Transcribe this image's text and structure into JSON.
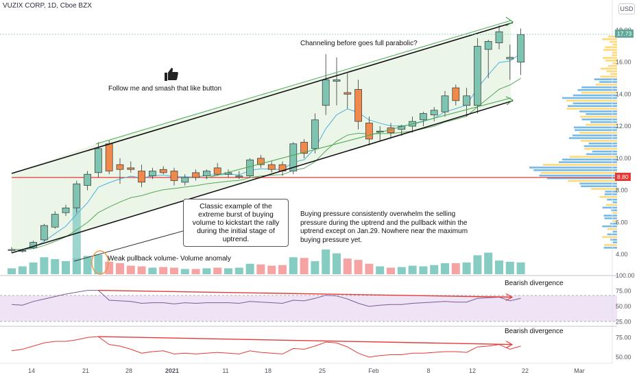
{
  "header": {
    "title": "VUZIX CORP, 1D, Cboe BZX",
    "currency": "USD"
  },
  "chart_data": {
    "type": "candlestick",
    "title": "VUZIX CORP, 1D, Cboe BZX",
    "x_tick_labels": [
      "14",
      "21",
      "28",
      "2021",
      "11",
      "18",
      "25",
      "Feb",
      "8",
      "12",
      "22",
      "Mar"
    ],
    "y_axis": {
      "ticks": [
        "4.00",
        "6.00",
        "8.00",
        "10.00",
        "12.00",
        "14.00",
        "16.00",
        "18.00"
      ],
      "range": [
        3.3,
        19.0
      ],
      "last_price": "17.73",
      "red_level": "8.80",
      "last_price_value": 17.73,
      "red_level_value": 8.8
    },
    "candles": [
      {
        "o": 4.3,
        "h": 4.45,
        "l": 4.1,
        "c": 4.3
      },
      {
        "o": 4.2,
        "h": 4.35,
        "l": 4.1,
        "c": 4.25
      },
      {
        "o": 4.4,
        "h": 4.85,
        "l": 4.35,
        "c": 4.75
      },
      {
        "o": 4.9,
        "h": 5.9,
        "l": 4.8,
        "c": 5.8
      },
      {
        "o": 5.7,
        "h": 6.7,
        "l": 5.6,
        "c": 6.5
      },
      {
        "o": 6.6,
        "h": 7.1,
        "l": 6.4,
        "c": 6.9
      },
      {
        "o": 6.9,
        "h": 8.6,
        "l": 6.6,
        "c": 8.4
      },
      {
        "o": 8.3,
        "h": 9.2,
        "l": 8.0,
        "c": 9.0
      },
      {
        "o": 9.1,
        "h": 11.0,
        "l": 8.8,
        "c": 10.6
      },
      {
        "o": 10.9,
        "h": 11.1,
        "l": 9.0,
        "c": 9.2
      },
      {
        "o": 9.6,
        "h": 10.0,
        "l": 8.4,
        "c": 9.3
      },
      {
        "o": 9.4,
        "h": 9.8,
        "l": 9.1,
        "c": 9.3
      },
      {
        "o": 9.2,
        "h": 9.6,
        "l": 8.2,
        "c": 8.5
      },
      {
        "o": 8.9,
        "h": 9.4,
        "l": 8.7,
        "c": 9.2
      },
      {
        "o": 9.3,
        "h": 9.5,
        "l": 9.0,
        "c": 9.1
      },
      {
        "o": 9.2,
        "h": 9.4,
        "l": 8.3,
        "c": 8.6
      },
      {
        "o": 8.5,
        "h": 9.0,
        "l": 8.3,
        "c": 8.8
      },
      {
        "o": 9.1,
        "h": 9.3,
        "l": 8.6,
        "c": 8.8
      },
      {
        "o": 8.9,
        "h": 9.3,
        "l": 8.7,
        "c": 9.2
      },
      {
        "o": 9.4,
        "h": 9.7,
        "l": 8.9,
        "c": 9.0
      },
      {
        "o": 9.0,
        "h": 9.3,
        "l": 8.8,
        "c": 9.1
      },
      {
        "o": 8.9,
        "h": 9.2,
        "l": 8.7,
        "c": 8.9
      },
      {
        "o": 8.9,
        "h": 10.0,
        "l": 8.8,
        "c": 9.9
      },
      {
        "o": 10.0,
        "h": 10.2,
        "l": 9.4,
        "c": 9.6
      },
      {
        "o": 9.6,
        "h": 9.8,
        "l": 9.1,
        "c": 9.3
      },
      {
        "o": 9.6,
        "h": 9.8,
        "l": 8.9,
        "c": 9.2
      },
      {
        "o": 9.2,
        "h": 11.0,
        "l": 9.0,
        "c": 10.9
      },
      {
        "o": 11.0,
        "h": 11.2,
        "l": 10.0,
        "c": 10.3
      },
      {
        "o": 10.6,
        "h": 12.8,
        "l": 10.3,
        "c": 12.4
      },
      {
        "o": 13.3,
        "h": 16.5,
        "l": 12.7,
        "c": 14.9
      },
      {
        "o": 14.8,
        "h": 16.3,
        "l": 13.3,
        "c": 14.9
      },
      {
        "o": 14.1,
        "h": 15.3,
        "l": 13.1,
        "c": 14.0
      },
      {
        "o": 14.3,
        "h": 14.9,
        "l": 11.8,
        "c": 12.3
      },
      {
        "o": 12.2,
        "h": 12.6,
        "l": 10.8,
        "c": 11.2
      },
      {
        "o": 11.7,
        "h": 12.0,
        "l": 11.1,
        "c": 11.7
      },
      {
        "o": 11.9,
        "h": 12.2,
        "l": 11.3,
        "c": 11.6
      },
      {
        "o": 11.8,
        "h": 12.1,
        "l": 11.4,
        "c": 12.0
      },
      {
        "o": 12.0,
        "h": 12.6,
        "l": 11.6,
        "c": 12.3
      },
      {
        "o": 12.4,
        "h": 12.9,
        "l": 12.0,
        "c": 12.8
      },
      {
        "o": 12.7,
        "h": 13.2,
        "l": 12.3,
        "c": 13.0
      },
      {
        "o": 12.9,
        "h": 14.2,
        "l": 12.6,
        "c": 13.9
      },
      {
        "o": 14.4,
        "h": 14.6,
        "l": 13.3,
        "c": 13.6
      },
      {
        "o": 13.3,
        "h": 14.4,
        "l": 12.6,
        "c": 13.9
      },
      {
        "o": 13.3,
        "h": 17.5,
        "l": 12.8,
        "c": 17.0
      },
      {
        "o": 16.8,
        "h": 17.4,
        "l": 15.0,
        "c": 17.3
      },
      {
        "o": 17.2,
        "h": 18.3,
        "l": 16.8,
        "c": 17.9
      },
      {
        "o": 16.2,
        "h": 17.1,
        "l": 14.9,
        "c": 16.3
      },
      {
        "o": 16.0,
        "h": 18.1,
        "l": 15.2,
        "c": 17.73
      }
    ],
    "volume": [
      0.9,
      1.2,
      1.8,
      2.6,
      2.3,
      2.0,
      2.5,
      2.8,
      3.0,
      1.9,
      1.7,
      1.3,
      1.2,
      1.0,
      1.1,
      1.0,
      0.8,
      0.8,
      0.9,
      1.0,
      0.9,
      1.0,
      1.6,
      1.5,
      1.3,
      1.4,
      2.6,
      2.5,
      2.0,
      3.8,
      3.2,
      2.4,
      2.2,
      1.6,
      1.2,
      1.0,
      1.1,
      1.3,
      1.2,
      1.4,
      1.7,
      1.7,
      1.8,
      2.9,
      3.3,
      2.1,
      1.9,
      1.8
    ],
    "rsi": {
      "ticks": [
        "100.00",
        "75.00",
        "50.00",
        "25.00"
      ],
      "range": [
        20,
        100
      ]
    },
    "lower_indicator": {
      "ticks": [
        "75.00",
        "50.00"
      ]
    }
  },
  "annotations": {
    "channel_note": "Channeling before goes full parabolic?",
    "like_note": "Follow me and smash that like button",
    "classic_note": "Classic example of the extreme burst of buying volume to kickstart the rally during the initial stage of uptrend.",
    "buying_note": "Buying pressure consistently overwhelm the selling pressure during the uptrend and the pullback within the uptrend except on Jan.29.  Nowhere near the maximum buying pressure yet.",
    "volume_note": "Weak pullback volume-  Volume anomaly",
    "divergence_rsi": "Bearish divergence",
    "divergence_lower": "Bearish divergence"
  },
  "colors": {
    "up": "#7ec4b0",
    "down": "#ef8a4c",
    "vol_up": "#86ccc3",
    "vol_down": "#f5a3a3",
    "channel_fill": "#e8f5e4",
    "red_line": "#e53935",
    "profile_blue": "#5aaee8",
    "profile_yellow": "#ffd25a",
    "rsi_line": "#7b5a96",
    "lower_line": "#e53935"
  }
}
